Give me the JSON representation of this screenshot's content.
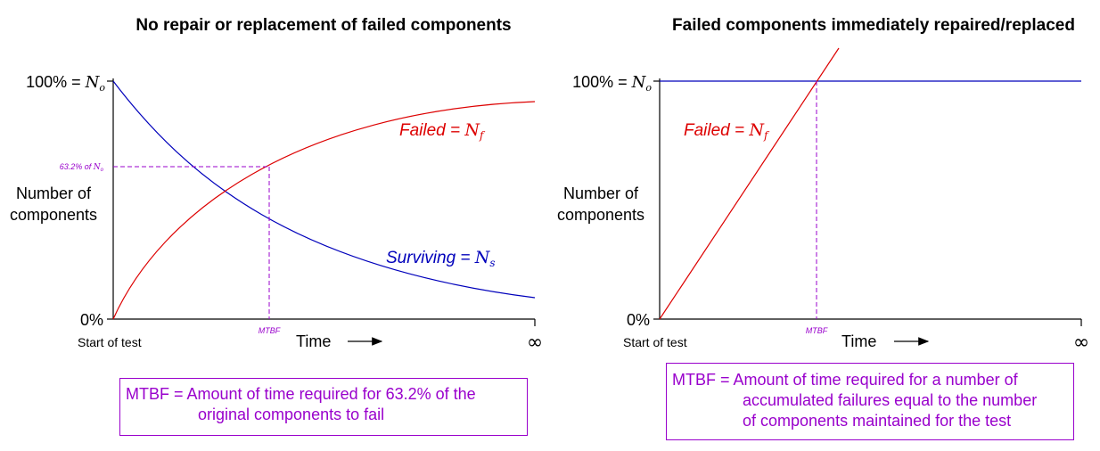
{
  "left_panel": {
    "title": "No repair or replacement of failed components",
    "y_top_label": "100% = ",
    "y_top_symbol": "N",
    "y_top_sub": "o",
    "y_bottom_label": "0%",
    "y_axis_title_line1": "Number of",
    "y_axis_title_line2": "components",
    "x_start_label": "Start of test",
    "x_title": "Time",
    "x_end_label": "∞",
    "mtbf_tick_label": "MTBF",
    "marker_label": "63.2% of ",
    "marker_symbol": "N",
    "marker_sub": "o",
    "failed_label": "Failed = ",
    "failed_symbol": "N",
    "failed_sub": "f",
    "surviving_label": "Surviving = ",
    "surviving_symbol": "N",
    "surviving_sub": "s",
    "note_line1": "MTBF = Amount of time required for 63.2% of the",
    "note_line2": "original components to fail"
  },
  "right_panel": {
    "title": "Failed components immediately repaired/replaced",
    "y_top_label": "100% = ",
    "y_top_symbol": "N",
    "y_top_sub": "o",
    "y_bottom_label": "0%",
    "y_axis_title_line1": "Number of",
    "y_axis_title_line2": "components",
    "x_start_label": "Start of test",
    "x_title": "Time",
    "x_end_label": "∞",
    "mtbf_tick_label": "MTBF",
    "failed_label": "Failed = ",
    "failed_symbol": "N",
    "failed_sub": "f",
    "note_line1": "MTBF = Amount of time required for a number of",
    "note_line2": "accumulated failures equal to the number",
    "note_line3": "of components maintained for the test"
  },
  "colors": {
    "failed": "#dd0000",
    "surviving": "#0000bb",
    "mtbf_marker": "#9900cc",
    "axes": "#000000"
  },
  "icons": {
    "time_arrow": "right-arrow-icon"
  }
}
